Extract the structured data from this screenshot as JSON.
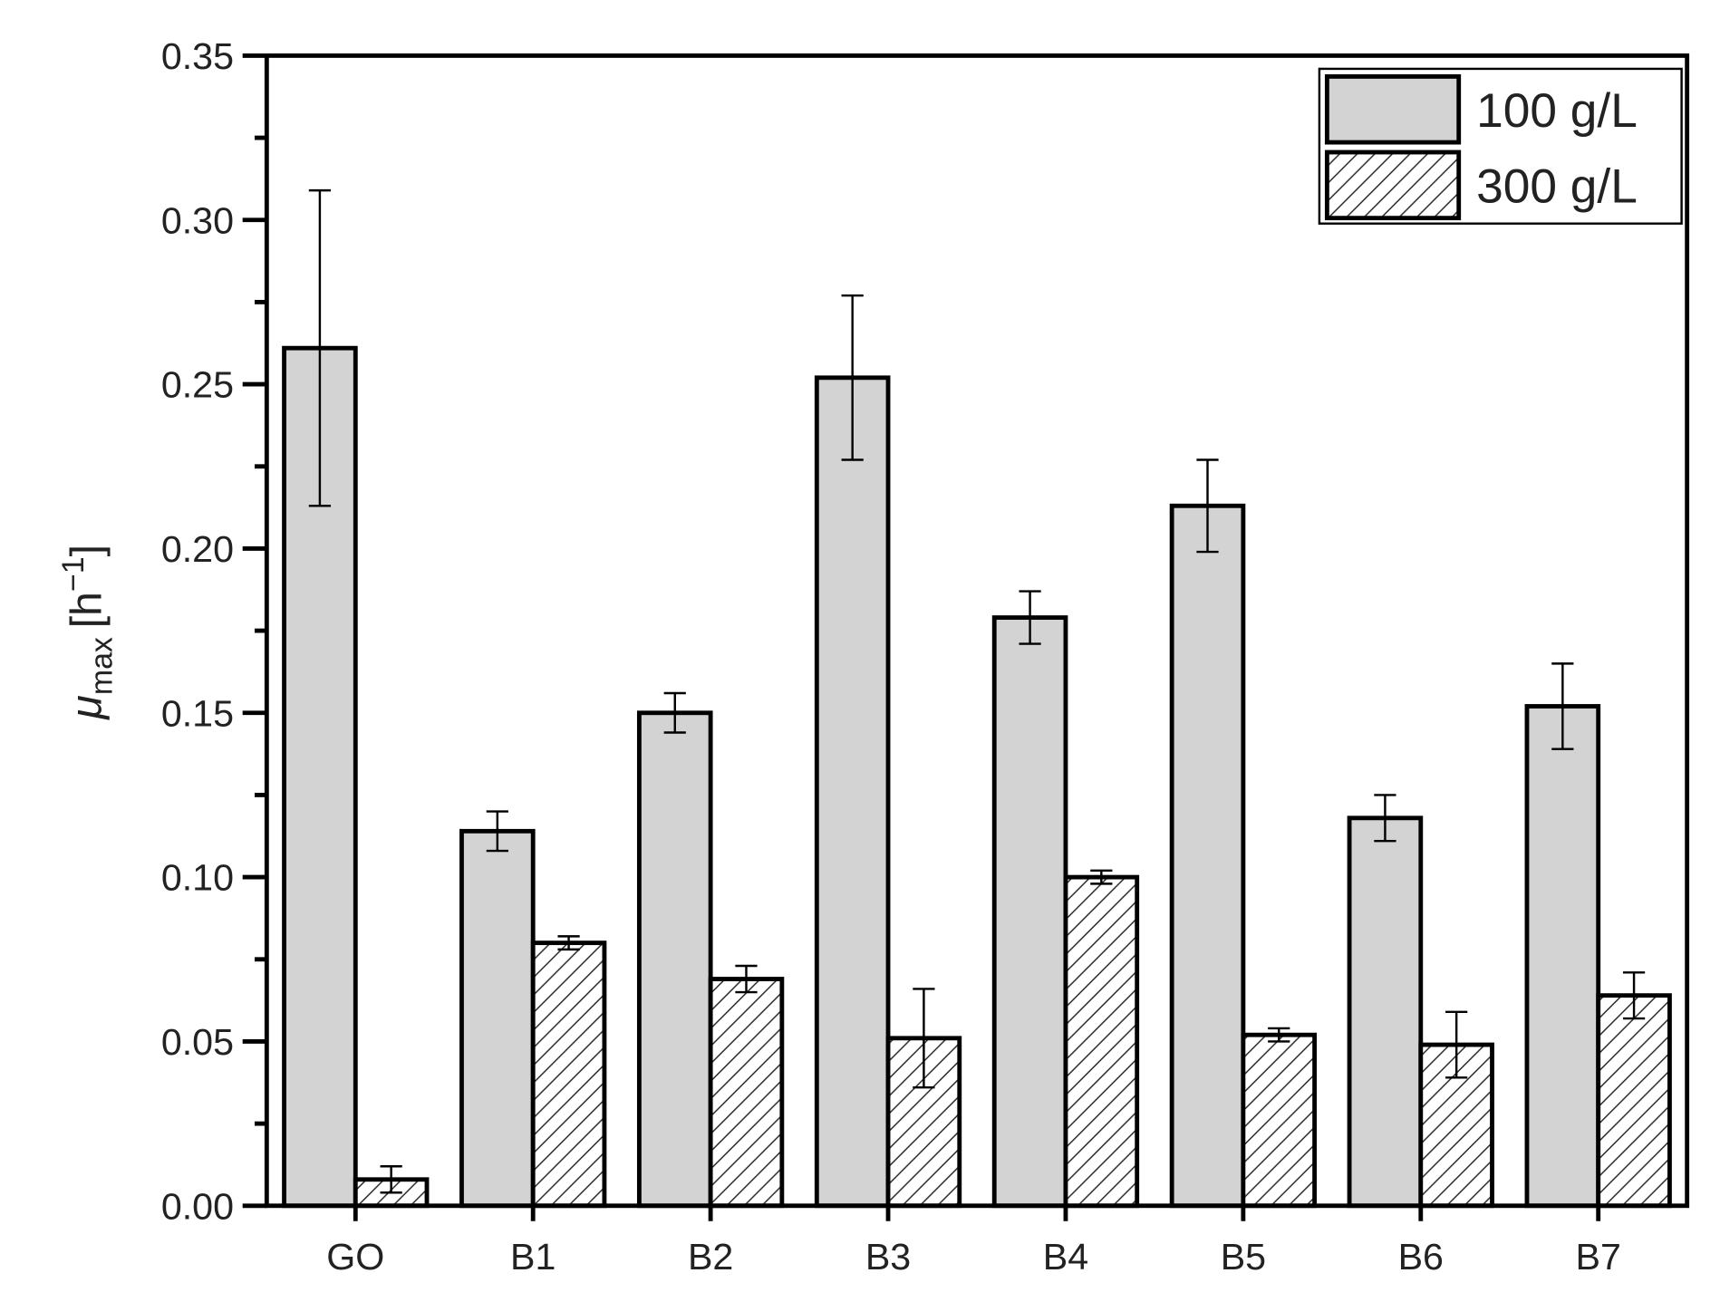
{
  "chart_data": {
    "type": "bar",
    "y_label": {
      "symbol": "μ",
      "subscript": "max",
      "unit": "[h",
      "superscript": "−1",
      "close": "]"
    },
    "categories": [
      "GO",
      "B1",
      "B2",
      "B3",
      "B4",
      "B5",
      "B6",
      "B7"
    ],
    "series": [
      {
        "name": "100 g/L",
        "color": "#d3d3d3",
        "pattern": "solid",
        "values": [
          0.261,
          0.114,
          0.15,
          0.252,
          0.179,
          0.213,
          0.118,
          0.152
        ],
        "errors": [
          0.048,
          0.006,
          0.006,
          0.025,
          0.008,
          0.014,
          0.007,
          0.013
        ]
      },
      {
        "name": "300 g/L",
        "color": "#ffffff",
        "pattern": "hatch",
        "values": [
          0.008,
          0.08,
          0.069,
          0.051,
          0.1,
          0.052,
          0.049,
          0.064
        ],
        "errors": [
          0.004,
          0.002,
          0.004,
          0.015,
          0.002,
          0.002,
          0.01,
          0.007
        ]
      }
    ],
    "ylim": [
      0,
      0.35
    ],
    "yticks": [
      {
        "value": 0,
        "label": "0.00"
      },
      {
        "value": 0.05,
        "label": "0.05"
      },
      {
        "value": 0.1,
        "label": "0.10"
      },
      {
        "value": 0.15,
        "label": "0.15"
      },
      {
        "value": 0.2,
        "label": "0.20"
      },
      {
        "value": 0.25,
        "label": "0.25"
      },
      {
        "value": 0.3,
        "label": "0.30"
      },
      {
        "value": 0.35,
        "label": "0.35"
      }
    ],
    "minor_yticks": [
      0.025,
      0.075,
      0.125,
      0.175,
      0.225,
      0.275,
      0.325
    ],
    "legend": "top-right",
    "grid": false
  }
}
